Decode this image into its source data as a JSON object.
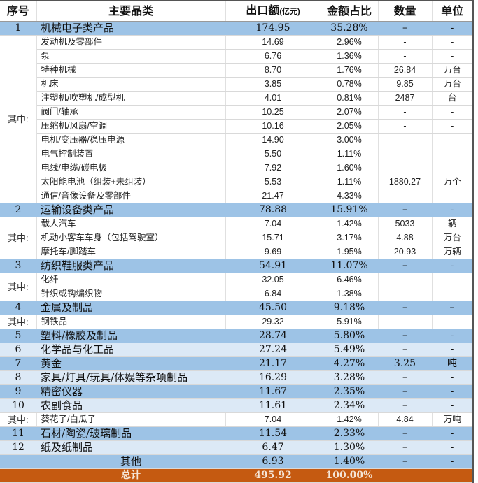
{
  "header": [
    "序号",
    "主要品类",
    "出口额",
    "(亿元)",
    "金额占比",
    "数量",
    "单位"
  ],
  "sub_label": "其中:",
  "groups": [
    {
      "no": "1",
      "name": "机械电子类产品",
      "value": "174.95",
      "share": "35.28%",
      "qty": "–",
      "unit": "-",
      "shade": "dark",
      "subs": [
        [
          "发动机及零部件",
          "14.69",
          "2.96%",
          "-",
          "-"
        ],
        [
          "泵",
          "6.76",
          "1.36%",
          "-",
          "-"
        ],
        [
          "特种机械",
          "8.70",
          "1.76%",
          "26.84",
          "万台"
        ],
        [
          "机床",
          "3.85",
          "0.78%",
          "9.85",
          "万台"
        ],
        [
          "注塑机/吹塑机/成型机",
          "4.01",
          "0.81%",
          "2487",
          "台"
        ],
        [
          "阀门/轴承",
          "10.25",
          "2.07%",
          "-",
          "-"
        ],
        [
          "压缩机/风扇/空调",
          "10.16",
          "2.05%",
          "-",
          "-"
        ],
        [
          "电机/变压器/稳压电源",
          "14.90",
          "3.00%",
          "-",
          "-"
        ],
        [
          "电气控制装置",
          "5.50",
          "1.11%",
          "-",
          "-"
        ],
        [
          "电线/电缆/碳电极",
          "7.92",
          "1.60%",
          "-",
          "-"
        ],
        [
          "太阳能电池（组装+未组装）",
          "5.53",
          "1.11%",
          "1880.27",
          "万个"
        ],
        [
          "通信/音像设备及零部件",
          "21.47",
          "4.33%",
          "-",
          "-"
        ]
      ]
    },
    {
      "no": "2",
      "name": "运输设备类产品",
      "value": "78.88",
      "share": "15.91%",
      "qty": "–",
      "unit": "-",
      "shade": "dark",
      "subs": [
        [
          "载人汽车",
          "7.04",
          "1.42%",
          "5033",
          "辆"
        ],
        [
          "机动小客车车身（包括驾驶室）",
          "15.71",
          "3.17%",
          "4.88",
          "万台"
        ],
        [
          "摩托车/脚踏车",
          "9.69",
          "1.95%",
          "20.93",
          "万辆"
        ]
      ]
    },
    {
      "no": "3",
      "name": "纺织鞋服类产品",
      "value": "54.91",
      "share": "11.07%",
      "qty": "–",
      "unit": "-",
      "shade": "dark",
      "subs": [
        [
          "化纤",
          "32.05",
          "6.46%",
          "-",
          "-"
        ],
        [
          "针织或钩编织物",
          "6.84",
          "1.38%",
          "-",
          "-"
        ]
      ]
    },
    {
      "no": "4",
      "name": "金属及制品",
      "value": "45.50",
      "share": "9.18%",
      "qty": "–",
      "unit": "–",
      "shade": "dark",
      "subs": [
        [
          "钢铁品",
          "29.32",
          "5.91%",
          "-",
          "–"
        ]
      ]
    },
    {
      "no": "5",
      "name": "塑料/橡胶及制品",
      "value": "28.74",
      "share": "5.80%",
      "qty": "–",
      "unit": "-",
      "shade": "dark",
      "subs": []
    },
    {
      "no": "6",
      "name": "化学品与化工品",
      "value": "27.24",
      "share": "5.49%",
      "qty": "–",
      "unit": "-",
      "shade": "light",
      "subs": []
    },
    {
      "no": "7",
      "name": "黄金",
      "value": "21.17",
      "share": "4.27%",
      "qty": "3.25",
      "unit": "吨",
      "shade": "dark",
      "subs": []
    },
    {
      "no": "8",
      "name": "家具/灯具/玩具/体娱等杂项制品",
      "value": "16.29",
      "share": "3.28%",
      "qty": "–",
      "unit": "-",
      "shade": "light",
      "subs": []
    },
    {
      "no": "9",
      "name": "精密仪器",
      "value": "11.67",
      "share": "2.35%",
      "qty": "–",
      "unit": "-",
      "shade": "dark",
      "subs": []
    },
    {
      "no": "10",
      "name": "农副食品",
      "value": "11.61",
      "share": "2.34%",
      "qty": "–",
      "unit": "-",
      "shade": "light",
      "subs": [
        [
          "葵花子/白瓜子",
          "7.04",
          "1.42%",
          "4.84",
          "万吨"
        ]
      ]
    },
    {
      "no": "11",
      "name": "石材/陶瓷/玻璃制品",
      "value": "11.54",
      "share": "2.33%",
      "qty": "–",
      "unit": "-",
      "shade": "dark",
      "subs": []
    },
    {
      "no": "12",
      "name": "纸及纸制品",
      "value": "6.47",
      "share": "1.30%",
      "qty": "–",
      "unit": "-",
      "shade": "light",
      "subs": []
    }
  ],
  "other": {
    "name": "其他",
    "value": "6.93",
    "share": "1.40%",
    "qty": "–",
    "unit": "-"
  },
  "total": {
    "name": "总计",
    "value": "495.92",
    "share": "100.00%"
  },
  "colors": {
    "category_dark": "#9dc3e6",
    "category_light": "#dce9f6",
    "total": "#c55a11"
  }
}
